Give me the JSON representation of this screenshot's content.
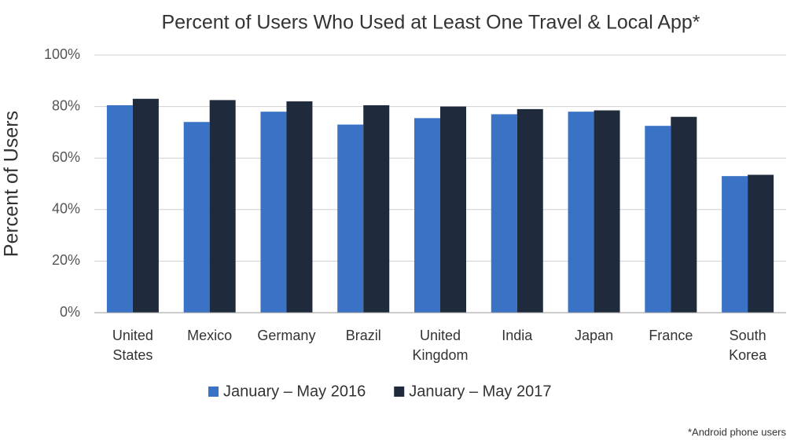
{
  "chart_data": {
    "type": "bar",
    "title": "Percent of Users Who Used at Least One Travel & Local App*",
    "ylabel": "Percent of Users",
    "footnote": "*Android phone users",
    "categories": [
      "United States",
      "Mexico",
      "Germany",
      "Brazil",
      "United Kingdom",
      "India",
      "Japan",
      "France",
      "South Korea"
    ],
    "series": [
      {
        "name": "January – May 2016",
        "color": "#3a73c6",
        "values": [
          80.5,
          74,
          78,
          73,
          75.5,
          77,
          78,
          72.5,
          53
        ]
      },
      {
        "name": "January – May 2017",
        "color": "#1f2a3c",
        "values": [
          83,
          82.5,
          82,
          80.5,
          80,
          79,
          78.5,
          76,
          53.5
        ]
      }
    ],
    "ylim": [
      0,
      100
    ],
    "yticks": [
      {
        "value": 0,
        "label": "0%"
      },
      {
        "value": 20,
        "label": "20%"
      },
      {
        "value": 40,
        "label": "40%"
      },
      {
        "value": 60,
        "label": "60%"
      },
      {
        "value": 80,
        "label": "80%"
      },
      {
        "value": 100,
        "label": "100%"
      }
    ],
    "grid": true,
    "legend": "bottom"
  }
}
